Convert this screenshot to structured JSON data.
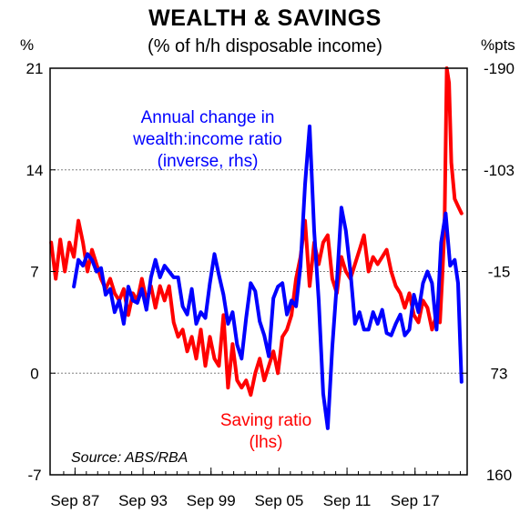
{
  "chart_data": {
    "type": "line",
    "title": "WEALTH & SAVINGS",
    "subtitle": "(% of h/h disposable income)",
    "left_unit": "%",
    "right_unit": "%pts",
    "left_ylim": [
      -7,
      21
    ],
    "left_ticks": [
      "21",
      "14",
      "7",
      "0",
      "-7"
    ],
    "right_ylim": [
      -190,
      160
    ],
    "right_ticks": [
      "-190",
      "-103",
      "-15",
      "73",
      "160"
    ],
    "x_ticks": [
      "Sep 87",
      "Sep 93",
      "Sep 99",
      "Sep 05",
      "Sep 11",
      "Sep 17"
    ],
    "x_range": [
      1985.5,
      2022.3
    ],
    "grid": "horizontal-dashed",
    "source": "Source: ABS/RBA",
    "colors": {
      "saving": "#ff0000",
      "wealth": "#0000ff",
      "grid": "#808080"
    },
    "series": [
      {
        "name": "Saving ratio",
        "label_lines": [
          "Saving ratio",
          "(lhs)"
        ],
        "axis": "left",
        "x": [
          1985.6,
          1986.0,
          1986.4,
          1986.8,
          1987.2,
          1987.6,
          1988.0,
          1988.4,
          1988.8,
          1989.2,
          1989.6,
          1990.0,
          1990.4,
          1990.8,
          1991.2,
          1991.6,
          1992.0,
          1992.4,
          1992.8,
          1993.2,
          1993.6,
          1994.0,
          1994.4,
          1994.8,
          1995.2,
          1995.6,
          1996.0,
          1996.4,
          1996.8,
          1997.2,
          1997.6,
          1998.0,
          1998.4,
          1998.8,
          1999.2,
          1999.6,
          2000.0,
          2000.4,
          2000.8,
          2001.2,
          2001.6,
          2002.0,
          2002.4,
          2002.8,
          2003.2,
          2003.6,
          2004.0,
          2004.4,
          2004.8,
          2005.2,
          2005.6,
          2006.0,
          2006.4,
          2006.8,
          2007.2,
          2007.6,
          2008.0,
          2008.4,
          2008.8,
          2009.2,
          2009.6,
          2010.0,
          2010.4,
          2010.8,
          2011.2,
          2011.6,
          2012.0,
          2012.4,
          2012.8,
          2013.2,
          2013.6,
          2014.0,
          2014.4,
          2014.8,
          2015.2,
          2015.6,
          2016.0,
          2016.4,
          2016.8,
          2017.2,
          2017.6,
          2018.0,
          2018.4,
          2018.8,
          2019.2,
          2019.6,
          2019.9,
          2020.1,
          2020.3,
          2020.5,
          2020.7,
          2020.9,
          2021.2,
          2021.5,
          2021.8
        ],
        "values": [
          9.0,
          6.5,
          9.2,
          7.0,
          9.0,
          8.0,
          10.5,
          9.0,
          7.0,
          8.5,
          7.5,
          6.5,
          5.8,
          6.5,
          5.5,
          5.0,
          5.8,
          4.0,
          5.5,
          5.0,
          6.5,
          5.0,
          6.0,
          4.5,
          6.0,
          5.0,
          6.0,
          3.5,
          2.5,
          3.0,
          1.5,
          2.5,
          1.0,
          3.0,
          0.5,
          2.5,
          1.0,
          0.5,
          4.0,
          -1.0,
          2.0,
          -0.5,
          -1.0,
          -0.5,
          -1.5,
          0.0,
          1.0,
          -0.5,
          0.5,
          1.5,
          0.0,
          2.5,
          3.0,
          4.0,
          6.5,
          8.0,
          10.5,
          6.0,
          9.0,
          7.5,
          9.0,
          9.5,
          6.5,
          5.5,
          8.0,
          7.0,
          6.5,
          7.5,
          8.5,
          9.5,
          7.0,
          8.0,
          7.5,
          8.0,
          8.5,
          7.0,
          6.0,
          5.5,
          4.5,
          5.5,
          4.0,
          3.5,
          5.0,
          4.5,
          3.0,
          4.0,
          3.5,
          6.5,
          10.0,
          21.0,
          20.0,
          14.5,
          12.0,
          11.5,
          11.0
        ]
      },
      {
        "name": "Annual change in wealth:income ratio (inverse, rhs)",
        "label_lines": [
          "Annual change in",
          "wealth:income ratio",
          "(inverse, rhs)"
        ],
        "axis": "right",
        "x": [
          1987.6,
          1988.0,
          1988.4,
          1988.8,
          1989.2,
          1989.6,
          1990.0,
          1990.4,
          1990.8,
          1991.2,
          1991.6,
          1992.0,
          1992.4,
          1992.8,
          1993.2,
          1993.6,
          1994.0,
          1994.4,
          1994.8,
          1995.2,
          1995.6,
          1996.0,
          1996.4,
          1996.8,
          1997.2,
          1997.6,
          1998.0,
          1998.4,
          1998.8,
          1999.2,
          1999.6,
          2000.0,
          2000.4,
          2000.8,
          2001.2,
          2001.6,
          2002.0,
          2002.4,
          2002.8,
          2003.2,
          2003.6,
          2004.0,
          2004.4,
          2004.8,
          2005.2,
          2005.6,
          2006.0,
          2006.4,
          2006.8,
          2007.2,
          2007.6,
          2008.0,
          2008.4,
          2008.8,
          2009.2,
          2009.6,
          2010.0,
          2010.4,
          2010.8,
          2011.2,
          2011.6,
          2012.0,
          2012.4,
          2012.8,
          2013.2,
          2013.6,
          2014.0,
          2014.4,
          2014.8,
          2015.2,
          2015.6,
          2016.0,
          2016.4,
          2016.8,
          2017.2,
          2017.6,
          2018.0,
          2018.4,
          2018.8,
          2019.2,
          2019.6,
          2020.0,
          2020.4,
          2020.8,
          2021.2,
          2021.5,
          2021.8
        ],
        "values": [
          -2,
          -25,
          -20,
          -30,
          -25,
          -15,
          -18,
          5,
          0,
          20,
          10,
          30,
          -2,
          10,
          12,
          0,
          18,
          -10,
          -25,
          -10,
          -20,
          -15,
          -10,
          -10,
          15,
          22,
          0,
          30,
          20,
          25,
          -5,
          -30,
          -12,
          5,
          30,
          20,
          48,
          60,
          25,
          -5,
          2,
          28,
          40,
          58,
          8,
          -2,
          -5,
          22,
          10,
          15,
          -20,
          -90,
          -140,
          -50,
          10,
          90,
          120,
          50,
          -5,
          -70,
          -50,
          -15,
          30,
          20,
          35,
          35,
          20,
          30,
          18,
          38,
          40,
          30,
          22,
          40,
          35,
          5,
          20,
          -5,
          -15,
          -5,
          35,
          -40,
          -65,
          -20,
          -25,
          -5,
          80
        ]
      }
    ]
  }
}
